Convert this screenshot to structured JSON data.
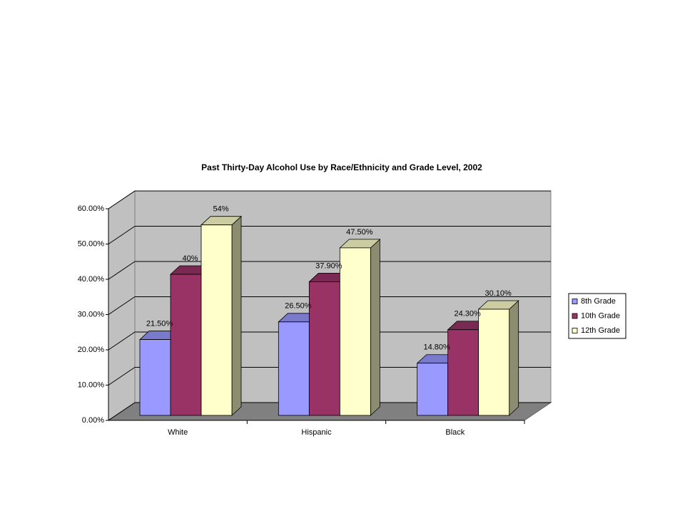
{
  "chart_data": {
    "type": "bar3d",
    "title": "Past Thirty-Day Alcohol Use by Race/Ethnicity and Grade Level, 2002",
    "categories": [
      "White",
      "Hispanic",
      "Black"
    ],
    "series": [
      {
        "name": "8th Grade",
        "color": "#9999ff",
        "values": [
          21.5,
          26.5,
          14.8
        ],
        "value_labels": [
          "21.50%",
          "26.50%",
          "14.80%"
        ]
      },
      {
        "name": "10th Grade",
        "color": "#993366",
        "values": [
          40,
          37.9,
          24.3
        ],
        "value_labels": [
          "40%",
          "37.90%",
          "24.30%"
        ]
      },
      {
        "name": "12th Grade",
        "color": "#ffffcc",
        "values": [
          54,
          47.5,
          30.1
        ],
        "value_labels": [
          "54%",
          "47.50%",
          "30.10%"
        ]
      }
    ],
    "ylim": [
      0,
      60
    ],
    "yticks": [
      {
        "value": 0,
        "label": "0.00%"
      },
      {
        "value": 10,
        "label": "10.00%"
      },
      {
        "value": 20,
        "label": "20.00%"
      },
      {
        "value": 30,
        "label": "30.00%"
      },
      {
        "value": 40,
        "label": "40.00%"
      },
      {
        "value": 50,
        "label": "50.00%"
      },
      {
        "value": 60,
        "label": "60.00%"
      }
    ],
    "grid": true,
    "legend": "right"
  }
}
